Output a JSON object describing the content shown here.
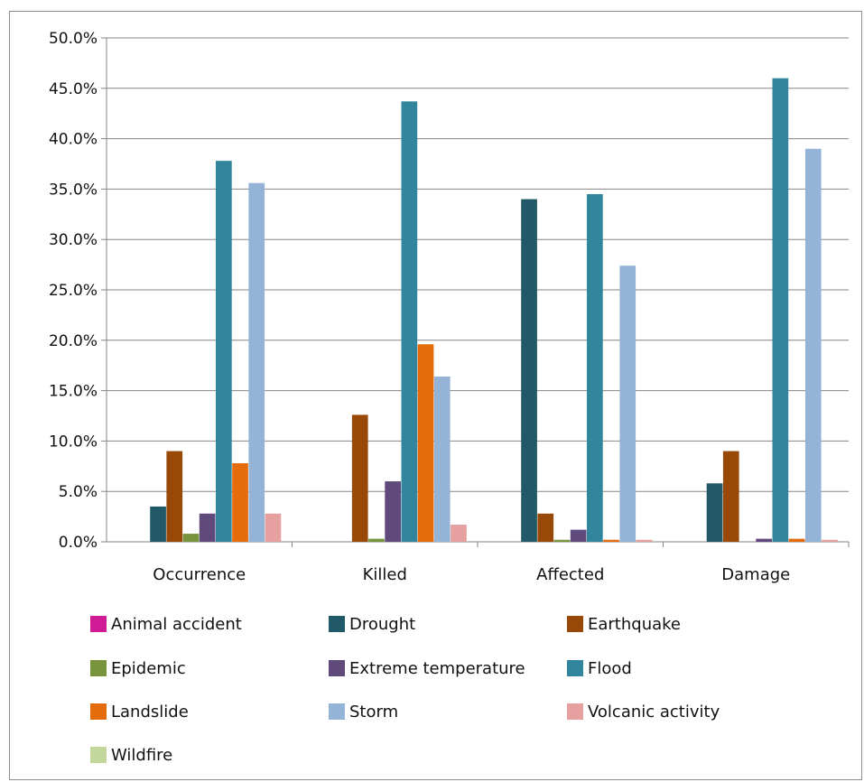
{
  "chart_data": {
    "type": "bar",
    "categories": [
      "Occurrence",
      "Killed",
      "Affected",
      "Damage"
    ],
    "ylim": [
      0,
      50
    ],
    "yticks": [
      "0.0%",
      "5.0%",
      "10.0%",
      "15.0%",
      "20.0%",
      "25.0%",
      "30.0%",
      "35.0%",
      "40.0%",
      "45.0%",
      "50.0%"
    ],
    "ytick_values": [
      0,
      5,
      10,
      15,
      20,
      25,
      30,
      35,
      40,
      45,
      50
    ],
    "grid": true,
    "legend_position": "bottom",
    "series": [
      {
        "name": "Animal accident",
        "color": "#d11a96",
        "values": [
          0,
          0,
          0,
          0
        ]
      },
      {
        "name": "Drought",
        "color": "#215968",
        "values": [
          3.5,
          0,
          34.0,
          5.8
        ]
      },
      {
        "name": "Earthquake",
        "color": "#984807",
        "values": [
          9.0,
          12.6,
          2.8,
          9.0
        ]
      },
      {
        "name": "Epidemic",
        "color": "#77933c",
        "values": [
          0.8,
          0.3,
          0.2,
          0
        ]
      },
      {
        "name": "Extreme temperature",
        "color": "#604a7b",
        "values": [
          2.8,
          6.0,
          1.2,
          0.3
        ]
      },
      {
        "name": "Flood",
        "color": "#31859c",
        "values": [
          37.8,
          43.7,
          34.5,
          46.0
        ]
      },
      {
        "name": "Landslide",
        "color": "#e46c0a",
        "values": [
          7.8,
          19.6,
          0.2,
          0.3
        ]
      },
      {
        "name": "Storm",
        "color": "#95b3d7",
        "values": [
          35.6,
          16.4,
          27.4,
          39.0
        ]
      },
      {
        "name": "Volcanic activity",
        "color": "#e6a0a0",
        "values": [
          2.8,
          1.7,
          0.2,
          0.2
        ]
      },
      {
        "name": "Wildfire",
        "color": "#c3d69b",
        "values": [
          0,
          0,
          0,
          0
        ]
      }
    ]
  }
}
